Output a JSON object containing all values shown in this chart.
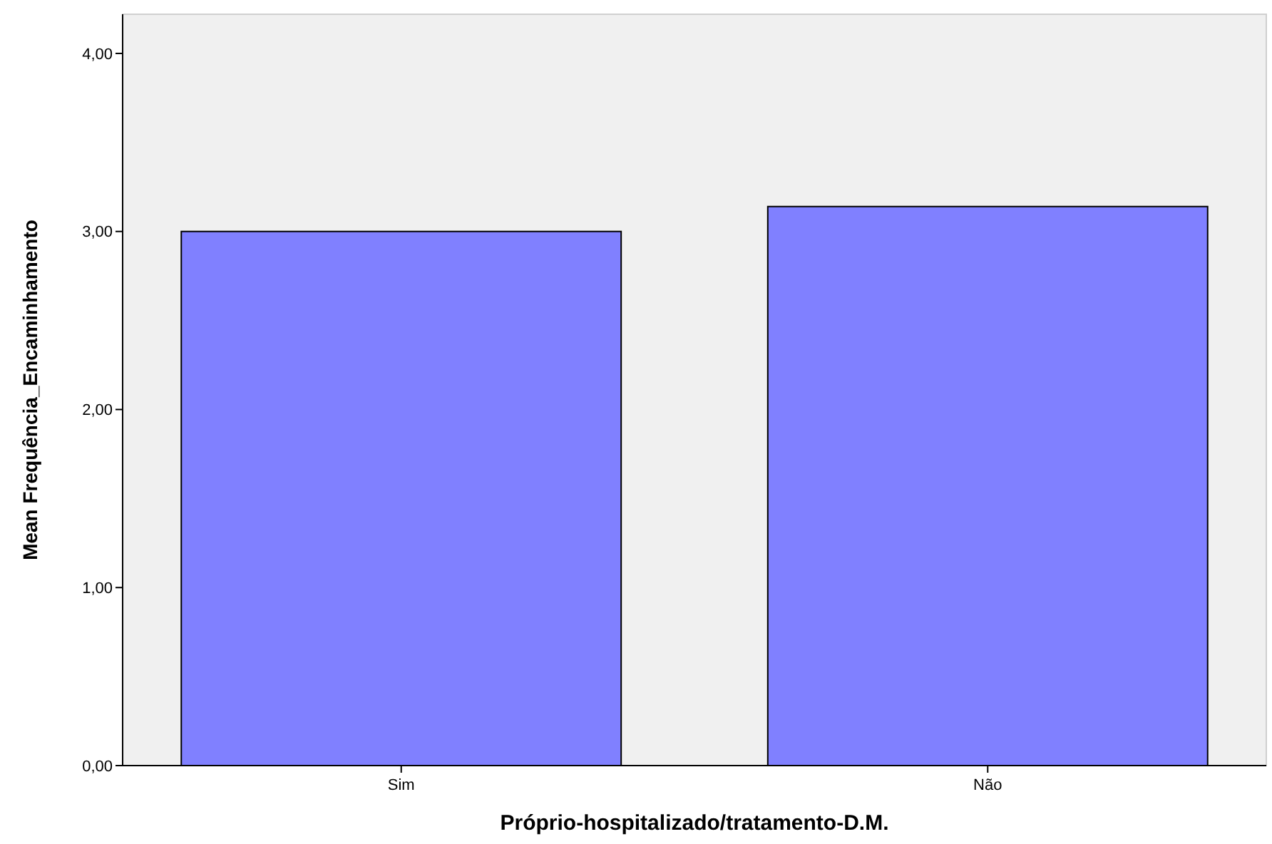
{
  "chart_data": {
    "type": "bar",
    "xlabel": "Próprio-hospitalizado/tratamento-D.M.",
    "ylabel": "Mean Frequência_Encaminhamento",
    "categories": [
      "Sim",
      "Não"
    ],
    "values": [
      3.0,
      3.14
    ],
    "color": "#8080ff",
    "ylim": [
      0,
      4.22
    ],
    "yticks": [
      {
        "value": 0,
        "label": "0,00"
      },
      {
        "value": 1,
        "label": "1,00"
      },
      {
        "value": 2,
        "label": "2,00"
      },
      {
        "value": 3,
        "label": "3,00"
      },
      {
        "value": 4,
        "label": "4,00"
      }
    ],
    "grid": false
  }
}
